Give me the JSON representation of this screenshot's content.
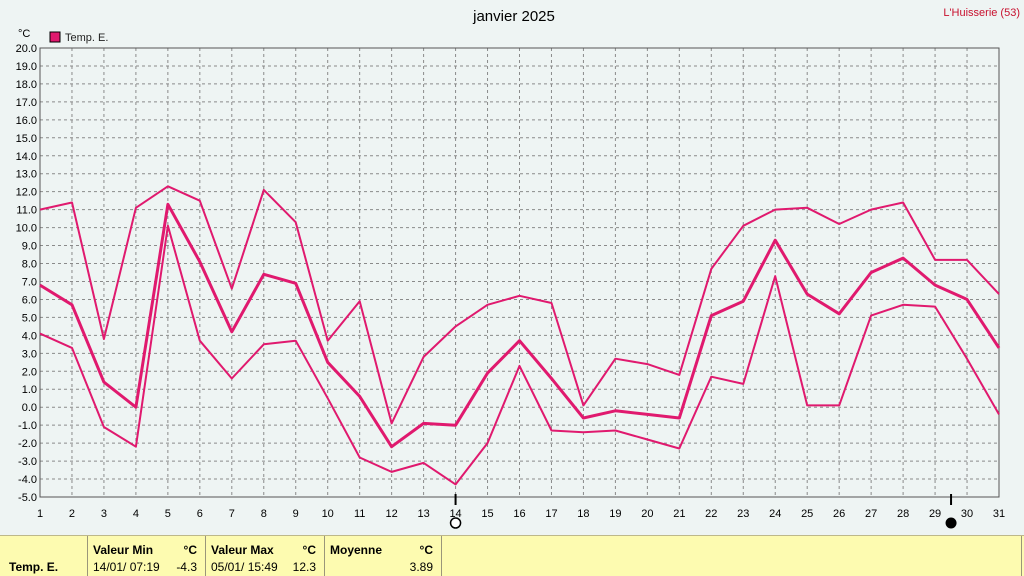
{
  "station": "L'Huisserie (53)",
  "chart_data": {
    "type": "line",
    "title": "janvier 2025",
    "ylabel": "°C",
    "ylim": [
      -5.0,
      20.0
    ],
    "ytick_step": 1.0,
    "x": [
      1,
      2,
      3,
      4,
      5,
      6,
      7,
      8,
      9,
      10,
      11,
      12,
      13,
      14,
      15,
      16,
      17,
      18,
      19,
      20,
      21,
      22,
      23,
      24,
      25,
      26,
      27,
      28,
      29,
      30,
      31
    ],
    "xlim": [
      1,
      31
    ],
    "grid": true,
    "legend": {
      "label": "Temp. E.",
      "color": "#e0196e",
      "position": "top-left"
    },
    "series": [
      {
        "name": "max",
        "values": [
          11.0,
          11.4,
          3.8,
          11.1,
          12.3,
          11.5,
          6.6,
          12.1,
          10.3,
          3.7,
          5.9,
          -0.9,
          2.8,
          4.5,
          5.7,
          6.2,
          5.8,
          0.1,
          2.7,
          2.4,
          1.8,
          7.7,
          10.1,
          11.0,
          11.1,
          10.2,
          11.0,
          11.4,
          8.2,
          8.2,
          6.3
        ]
      },
      {
        "name": "mean",
        "values": [
          6.8,
          5.7,
          1.4,
          0.0,
          11.3,
          8.1,
          4.2,
          7.4,
          6.9,
          2.5,
          0.6,
          -2.2,
          -0.9,
          -1.0,
          1.9,
          3.7,
          1.6,
          -0.6,
          -0.2,
          -0.4,
          -0.6,
          5.1,
          5.9,
          9.3,
          6.3,
          5.2,
          7.5,
          8.3,
          6.8,
          6.0,
          3.3
        ]
      },
      {
        "name": "min",
        "values": [
          4.1,
          3.3,
          -1.1,
          -2.2,
          10.1,
          3.7,
          1.6,
          3.5,
          3.7,
          0.5,
          -2.8,
          -3.6,
          -3.1,
          -4.3,
          -2.0,
          2.3,
          -1.3,
          -1.4,
          -1.3,
          -1.8,
          -2.3,
          1.7,
          1.3,
          7.3,
          0.1,
          0.1,
          5.1,
          5.7,
          5.6,
          2.7,
          -0.4
        ]
      }
    ],
    "markers": {
      "min_day": 14,
      "max_day": 29.5
    }
  },
  "stats": {
    "row_label": "Temp. E.",
    "min": {
      "header": "Valeur Min",
      "unit": "°C",
      "datetime": "14/01/ 07:19",
      "value": "-4.3"
    },
    "max": {
      "header": "Valeur Max",
      "unit": "°C",
      "datetime": "05/01/ 15:49",
      "value": "12.3"
    },
    "avg": {
      "header": "Moyenne",
      "unit": "°C",
      "value": "3.89"
    }
  }
}
